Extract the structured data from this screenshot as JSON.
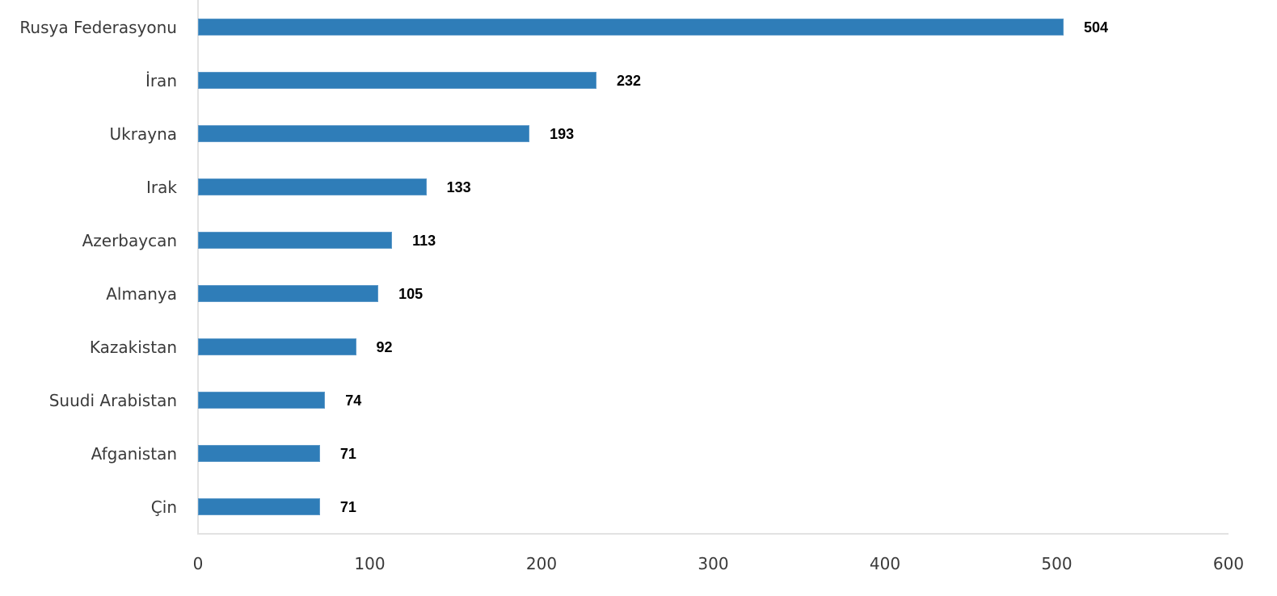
{
  "chart_data": {
    "type": "bar",
    "orientation": "horizontal",
    "title": "",
    "xlabel": "",
    "ylabel": "",
    "categories": [
      "Rusya Federasyonu",
      "İran",
      "Ukrayna",
      "Irak",
      "Azerbaycan",
      "Almanya",
      "Kazakistan",
      "Suudi Arabistan",
      "Afganistan",
      "Çin"
    ],
    "values": [
      504,
      232,
      193,
      133,
      113,
      105,
      92,
      74,
      71,
      71
    ],
    "xlim": [
      0,
      600
    ],
    "x_ticks": [
      "0",
      "100",
      "200",
      "300",
      "400",
      "500",
      "600"
    ],
    "grid": false,
    "legend": null,
    "data_labels": true,
    "bar_color": "#2f7db8"
  },
  "rows": [
    {
      "label": "Rusya Federasyonu",
      "value": "504"
    },
    {
      "label": "İran",
      "value": "232"
    },
    {
      "label": "Ukrayna",
      "value": "193"
    },
    {
      "label": "Irak",
      "value": "133"
    },
    {
      "label": "Azerbaycan",
      "value": "113"
    },
    {
      "label": "Almanya",
      "value": "105"
    },
    {
      "label": "Kazakistan",
      "value": "92"
    },
    {
      "label": "Suudi Arabistan",
      "value": "74"
    },
    {
      "label": "Afganistan",
      "value": "71"
    },
    {
      "label": "Çin",
      "value": "71"
    }
  ],
  "ticks": [
    "0",
    "100",
    "200",
    "300",
    "400",
    "500",
    "600"
  ]
}
